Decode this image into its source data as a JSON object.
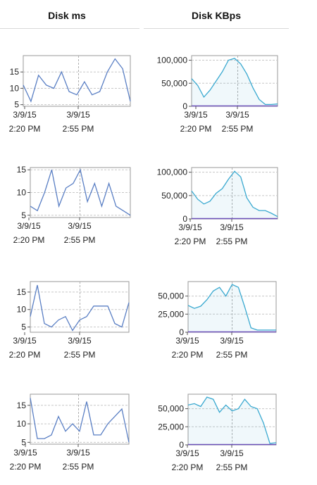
{
  "table": {
    "headers": [
      "Disk ms",
      "Disk KBps"
    ]
  },
  "chart_data": [
    {
      "row": 0,
      "col": 0,
      "type": "line",
      "color": "#5a7fc4",
      "ylim": [
        4.5,
        20
      ],
      "yticks": [
        5,
        10,
        15
      ],
      "yticklabels": [
        "5",
        "10",
        "15"
      ],
      "xticklabels": [
        [
          "3/9/15",
          "2:20 PM"
        ],
        [
          "3/9/15",
          "2:55 PM"
        ]
      ],
      "values": [
        11,
        6,
        14,
        11,
        10,
        15,
        9,
        8,
        12,
        8,
        9,
        15,
        19,
        16,
        6
      ]
    },
    {
      "row": 0,
      "col": 1,
      "type": "area",
      "color": "#3aa9d0",
      "baseline_color": "#6b4fb8",
      "ylim": [
        0,
        110000
      ],
      "yticks": [
        0,
        50000,
        100000
      ],
      "yticklabels": [
        "0",
        "50,000",
        "100,000"
      ],
      "xticklabels": [
        [
          "3/9/15",
          "2:20 PM"
        ],
        [
          "3/9/15",
          "2:55 PM"
        ]
      ],
      "values": [
        60000,
        45000,
        20000,
        35000,
        55000,
        75000,
        100000,
        104000,
        92000,
        70000,
        40000,
        15000,
        4000,
        4000,
        5000
      ]
    },
    {
      "row": 1,
      "col": 0,
      "type": "line",
      "color": "#5a7fc4",
      "ylim": [
        4.5,
        15.5
      ],
      "yticks": [
        5,
        10,
        15
      ],
      "yticklabels": [
        "5",
        "10",
        "15"
      ],
      "xticklabels": [
        [
          "3/9/15",
          "2:20 PM"
        ],
        [
          "3/9/15",
          "2:55 PM"
        ]
      ],
      "values": [
        7,
        6,
        10,
        15,
        7,
        11,
        12,
        15,
        8,
        12,
        7,
        12,
        7,
        6,
        5
      ]
    },
    {
      "row": 1,
      "col": 1,
      "type": "area",
      "color": "#3aa9d0",
      "baseline_color": "#6b4fb8",
      "ylim": [
        0,
        110000
      ],
      "yticks": [
        0,
        50000,
        100000
      ],
      "yticklabels": [
        "0",
        "50,000",
        "100,000"
      ],
      "xticklabels": [
        [
          "3/9/15",
          "2:20 PM"
        ],
        [
          "3/9/15",
          "2:55 PM"
        ]
      ],
      "values": [
        60000,
        42000,
        32000,
        38000,
        55000,
        65000,
        85000,
        102000,
        90000,
        45000,
        25000,
        18000,
        18000,
        12000,
        5000
      ]
    },
    {
      "row": 2,
      "col": 0,
      "type": "line",
      "color": "#5a7fc4",
      "ylim": [
        3.5,
        18
      ],
      "yticks": [
        5,
        10,
        15
      ],
      "yticklabels": [
        "5",
        "10",
        "15"
      ],
      "xticklabels": [
        [
          "3/9/15",
          "2:20 PM"
        ],
        [
          "3/9/15",
          "2:55 PM"
        ]
      ],
      "values": [
        8,
        17,
        6,
        5,
        7,
        8,
        4,
        7,
        8,
        11,
        11,
        11,
        6,
        5,
        12
      ]
    },
    {
      "row": 2,
      "col": 1,
      "type": "area",
      "color": "#3aa9d0",
      "baseline_color": "#6b4fb8",
      "ylim": [
        0,
        70000
      ],
      "yticks": [
        0,
        25000,
        50000
      ],
      "yticklabels": [
        "0",
        "25,000",
        "50,000"
      ],
      "xticklabels": [
        [
          "3/9/15",
          "2:20 PM"
        ],
        [
          "3/9/15",
          "2:55 PM"
        ]
      ],
      "values": [
        37000,
        33000,
        36000,
        45000,
        57000,
        62000,
        50000,
        66000,
        62000,
        35000,
        6000,
        3000,
        3000,
        3000,
        3000
      ]
    },
    {
      "row": 3,
      "col": 0,
      "type": "line",
      "color": "#5a7fc4",
      "ylim": [
        4.5,
        18
      ],
      "yticks": [
        5,
        10,
        15
      ],
      "yticklabels": [
        "5",
        "10",
        "15"
      ],
      "xticklabels": [
        [
          "3/9/15",
          "2:20 PM"
        ],
        [
          "3/9/15",
          "2:55 PM"
        ]
      ],
      "values": [
        17,
        6,
        6,
        7,
        12,
        8,
        10,
        8,
        16,
        7,
        7,
        10,
        12,
        14,
        5
      ]
    },
    {
      "row": 3,
      "col": 1,
      "type": "area",
      "color": "#3aa9d0",
      "baseline_color": "#6b4fb8",
      "ylim": [
        0,
        70000
      ],
      "yticks": [
        0,
        25000,
        50000
      ],
      "yticklabels": [
        "0",
        "25,000",
        "50,000"
      ],
      "xticklabels": [
        [
          "3/9/15",
          "2:20 PM"
        ],
        [
          "3/9/15",
          "2:55 PM"
        ]
      ],
      "values": [
        55000,
        57000,
        53000,
        66000,
        63000,
        45000,
        55000,
        47000,
        50000,
        63000,
        53000,
        50000,
        30000,
        2000,
        3000
      ]
    }
  ]
}
